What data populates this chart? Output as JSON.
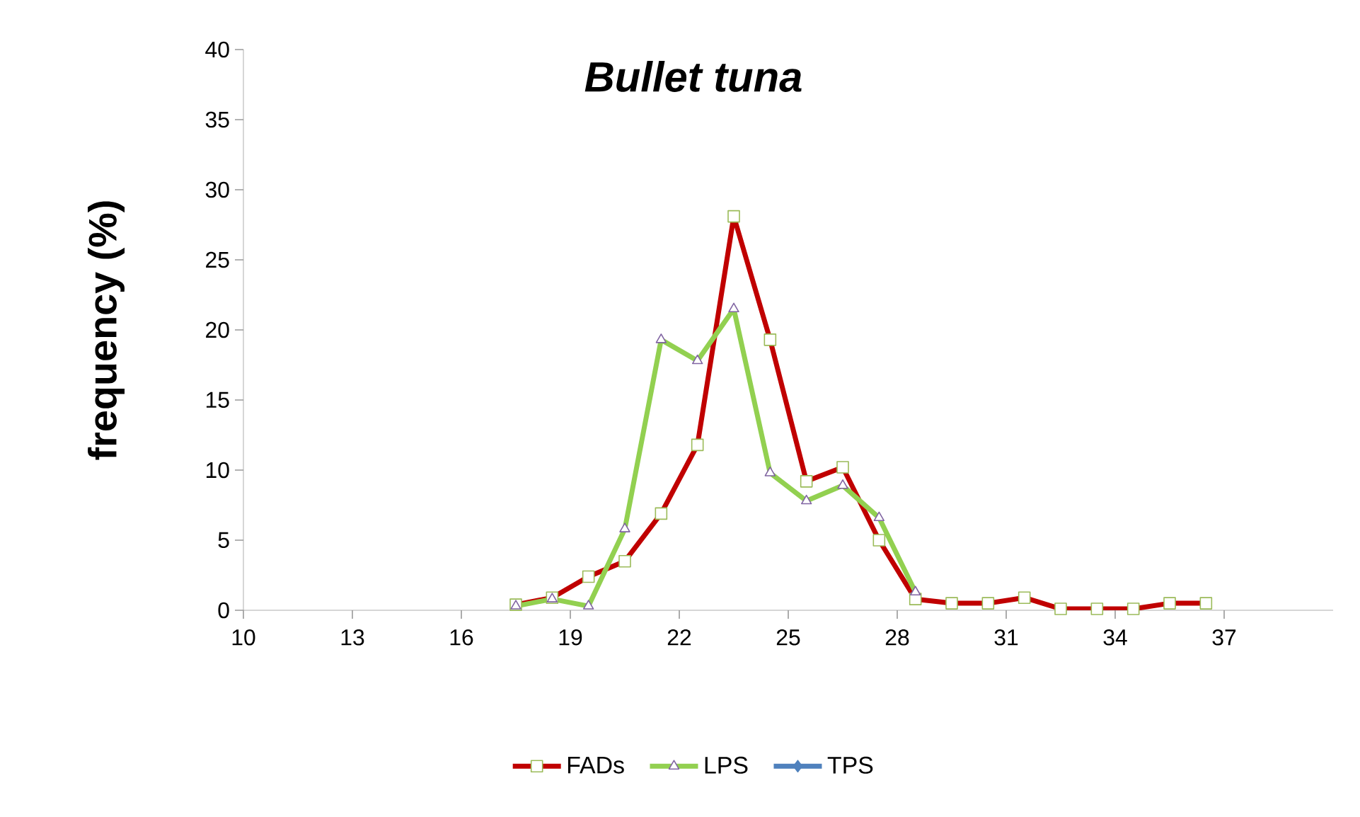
{
  "chart_data": {
    "type": "line",
    "title": "Bullet tuna",
    "ylabel": "frequency (%)",
    "x": [
      17.5,
      18.5,
      19.5,
      20.5,
      21.5,
      22.5,
      23.5,
      24.5,
      25.5,
      26.5,
      27.5,
      28.5,
      29.5,
      30.5,
      31.5,
      32.5,
      33.5,
      34.5,
      35.5,
      36.5
    ],
    "series": [
      {
        "name": "FADs",
        "color": "#c00000",
        "marker": "square",
        "values": [
          0.4,
          0.9,
          2.4,
          3.5,
          6.9,
          11.8,
          28.1,
          19.3,
          9.2,
          10.2,
          5.0,
          0.8,
          0.5,
          0.5,
          0.9,
          0.1,
          0.1,
          0.1,
          0.5,
          0.5
        ]
      },
      {
        "name": "LPS",
        "color": "#92d050",
        "marker": "triangle",
        "values": [
          0.3,
          0.8,
          0.3,
          5.8,
          19.3,
          17.8,
          21.5,
          9.8,
          7.8,
          8.9,
          6.6,
          1.3,
          null,
          null,
          null,
          null,
          null,
          null,
          null,
          null
        ]
      },
      {
        "name": "TPS",
        "color": "#4f81bd",
        "marker": "diamond",
        "values": [
          null,
          null,
          null,
          null,
          null,
          null,
          null,
          null,
          null,
          null,
          null,
          null,
          null,
          null,
          null,
          null,
          null,
          null,
          null,
          null
        ]
      }
    ],
    "xlim": [
      10,
      40
    ],
    "xticks": [
      10,
      13,
      16,
      19,
      22,
      25,
      28,
      31,
      34,
      37
    ],
    "ylim": [
      0,
      40
    ],
    "yticks": [
      0,
      5,
      10,
      15,
      20,
      25,
      30,
      35,
      40
    ],
    "grid": false,
    "legend": "bottom",
    "line_style": "solid"
  }
}
